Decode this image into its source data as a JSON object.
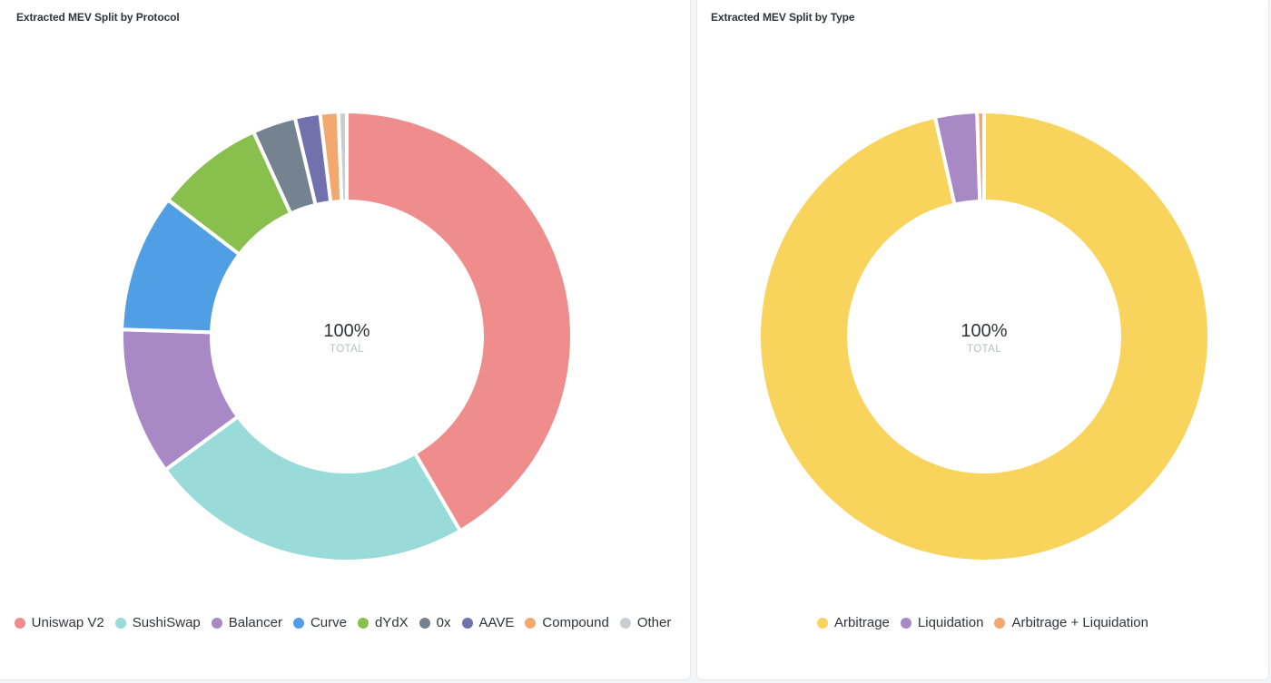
{
  "chart_data": [
    {
      "type": "pie",
      "variant": "donut",
      "title": "Extracted MEV Split by Protocol",
      "center_value": "100%",
      "center_label": "TOTAL",
      "legend_position": "bottom",
      "unit": "%",
      "categories": [
        "Uniswap V2",
        "SushiSwap",
        "Balancer",
        "Curve",
        "dYdX",
        "0x",
        "AAVE",
        "Compound",
        "Other"
      ],
      "values": [
        41.6,
        23.3,
        10.6,
        9.9,
        7.8,
        3.1,
        1.8,
        1.3,
        0.6
      ],
      "colors": [
        "#ef8c8c",
        "#98dbd9",
        "#a989c5",
        "#509ee3",
        "#88bf4d",
        "#74838f",
        "#7172ad",
        "#f2a86f",
        "#c9ced2"
      ]
    },
    {
      "type": "pie",
      "variant": "donut",
      "title": "Extracted MEV Split by Type",
      "center_value": "100%",
      "center_label": "TOTAL",
      "legend_position": "bottom",
      "unit": "%",
      "categories": [
        "Arbitrage",
        "Liquidation",
        "Arbitrage + Liquidation"
      ],
      "values": [
        96.5,
        3.0,
        0.5
      ],
      "colors": [
        "#f9d45c",
        "#a989c5",
        "#f2a86f"
      ]
    }
  ]
}
